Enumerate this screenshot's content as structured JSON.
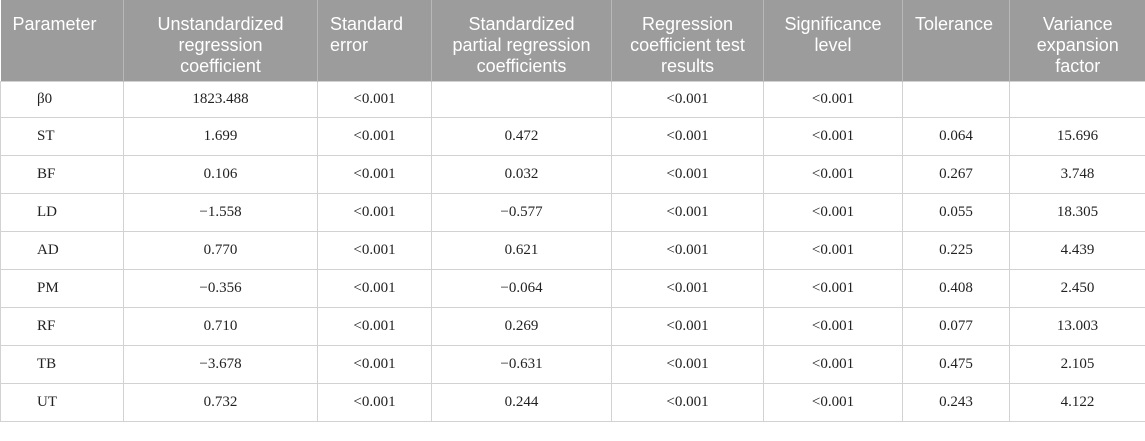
{
  "table": {
    "headers": [
      "Parameter",
      "Unstandardized regression coefficient",
      "Standard error",
      "Standardized partial regression coefficients",
      "Regression coefficient test results",
      "Significance level",
      "Tolerance",
      "Variance expansion factor"
    ],
    "rows": [
      [
        "β0",
        "1823.488",
        "<0.001",
        "",
        "<0.001",
        "<0.001",
        "",
        ""
      ],
      [
        "ST",
        "1.699",
        "<0.001",
        "0.472",
        "<0.001",
        "<0.001",
        "0.064",
        "15.696"
      ],
      [
        "BF",
        "0.106",
        "<0.001",
        "0.032",
        "<0.001",
        "<0.001",
        "0.267",
        "3.748"
      ],
      [
        "LD",
        "−1.558",
        "<0.001",
        "−0.577",
        "<0.001",
        "<0.001",
        "0.055",
        "18.305"
      ],
      [
        "AD",
        "0.770",
        "<0.001",
        "0.621",
        "<0.001",
        "<0.001",
        "0.225",
        "4.439"
      ],
      [
        "PM",
        "−0.356",
        "<0.001",
        "−0.064",
        "<0.001",
        "<0.001",
        "0.408",
        "2.450"
      ],
      [
        "RF",
        "0.710",
        "<0.001",
        "0.269",
        "<0.001",
        "<0.001",
        "0.077",
        "13.003"
      ],
      [
        "TB",
        "−3.678",
        "<0.001",
        "−0.631",
        "<0.001",
        "<0.001",
        "0.475",
        "2.105"
      ],
      [
        "UT",
        "0.732",
        "<0.001",
        "0.244",
        "<0.001",
        "<0.001",
        "0.243",
        "4.122"
      ]
    ]
  }
}
